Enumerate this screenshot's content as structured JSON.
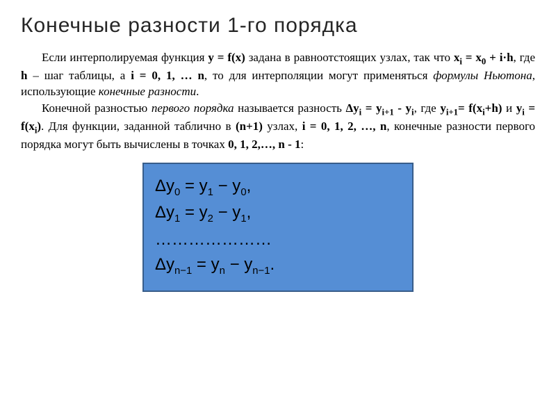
{
  "title": "Конечные разности 1-го порядка",
  "para1_parts": {
    "t1": "Если интерполируемая функция ",
    "b1": "y = f(x)",
    "t2": " задана в равноотстоящих узлах, так что ",
    "b2": "x",
    "b2s": "i",
    "b3": " = x",
    "b3s": "0",
    "b4": " + i·h",
    "t3": ", где ",
    "b5": "h",
    "t4": " – шаг таблицы, а ",
    "b6": "i = 0, 1, … n",
    "t5": ", то для интерполяции могут применяться ",
    "i1": "формулы Ньютона",
    "t6": ", использующие ",
    "i2": "конечные разности",
    "t7": "."
  },
  "para2_parts": {
    "t1": "Конечной разностью ",
    "i1": "первого порядка",
    "t2": " называется разность ",
    "b1a": "Δy",
    "b1s": "i",
    "b1b": " = y",
    "b1s2": "i+1",
    "b1c": " - y",
    "b1s3": "i",
    "t3": ", где       ",
    "b2a": "y",
    "b2s1": "i+1",
    "b2b": "= f(x",
    "b2s2": "i",
    "b2c": "+h)",
    "t4": " и ",
    "b3a": "y",
    "b3s1": "i",
    "b3b": " = f(x",
    "b3s2": "i",
    "b3c": ")",
    "t5": ". Для функции, заданной таблично в ",
    "b4": "(n+1)",
    "t6": " узлах,   ",
    "b5": "i = 0, 1, 2, …, n",
    "t7": ", конечные разности первого порядка могут быть вычислены в точках    ",
    "b6": "0, 1, 2,…, n - 1",
    "t8": ":"
  },
  "formula": {
    "box_bg": "#558ed5",
    "box_border": "#385d8a",
    "lines": {
      "l1": {
        "d": "Δ",
        "y": "y",
        "s1": "0",
        "eq": " = y",
        "s2": "1",
        "mid": " − y",
        "s3": "0",
        "end": ","
      },
      "l2": {
        "d": "Δ",
        "y": "y",
        "s1": "1",
        "eq": " = y",
        "s2": "2",
        "mid": " − y",
        "s3": "1",
        "end": ","
      },
      "dots": "…………………",
      "l3": {
        "d": "Δ",
        "y": "y",
        "s1": "n−1",
        "eq": " = y",
        "s2": "n",
        "mid": " − y",
        "s3": "n−1",
        "end": "."
      }
    }
  }
}
